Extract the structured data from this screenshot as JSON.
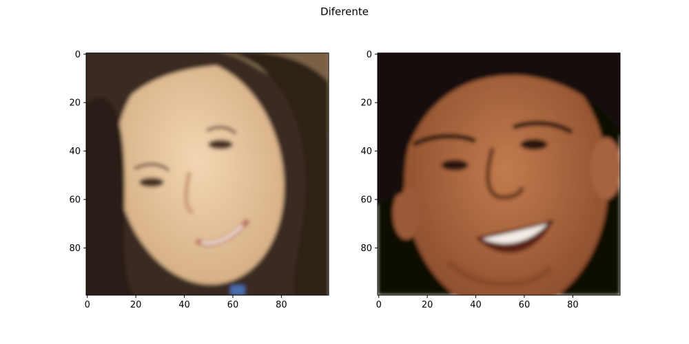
{
  "figure": {
    "suptitle": "Diferente"
  },
  "chart_data": [
    {
      "type": "image",
      "subplot": "left",
      "content": "face photo of a smiling woman with long dark hair",
      "xlim": [
        -0.5,
        99.5
      ],
      "ylim": [
        99.5,
        -0.5
      ],
      "y_inverted": true,
      "xticks": [
        0,
        20,
        40,
        60,
        80
      ],
      "yticks": [
        0,
        20,
        40,
        60,
        80
      ],
      "image_shape": [
        100,
        100
      ],
      "palette": {
        "background": "#b59b74",
        "hair": "#2f241c",
        "skin": "#e3c29b",
        "skin_shadow": "#c9a27b",
        "lips": "#c98575"
      }
    },
    {
      "type": "image",
      "subplot": "right",
      "content": "face photo of a smiling man with short dark hair",
      "xlim": [
        -0.5,
        99.5
      ],
      "ylim": [
        99.5,
        -0.5
      ],
      "y_inverted": true,
      "xticks": [
        0,
        20,
        40,
        60,
        80
      ],
      "yticks": [
        0,
        20,
        40,
        60,
        80
      ],
      "image_shape": [
        100,
        100
      ],
      "palette": {
        "background": "#0b0806",
        "hair": "#120c08",
        "skin": "#b06d45",
        "skin_shadow": "#7c4528",
        "teeth": "#f2ece4"
      }
    }
  ]
}
